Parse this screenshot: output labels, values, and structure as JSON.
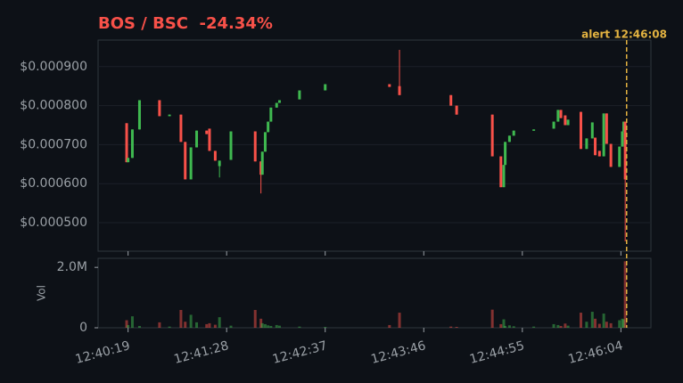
{
  "chart_data": {
    "type": "candlestick",
    "title": "BOS / BSC  -24.34%",
    "title_color": "#f85149",
    "up_color": "#3fb950",
    "down_color": "#f85149",
    "x": [
      "12:40:18",
      "12:40:19",
      "12:40:22",
      "12:40:27",
      "12:40:41",
      "12:40:48",
      "12:40:56",
      "12:40:59",
      "12:41:03",
      "12:41:07",
      "12:41:14",
      "12:41:16",
      "12:41:20",
      "12:41:23",
      "12:41:31",
      "12:41:48",
      "12:41:52",
      "12:41:53",
      "12:41:55",
      "12:41:57",
      "12:41:59",
      "12:42:03",
      "12:42:05",
      "12:42:19",
      "12:42:37",
      "12:43:22",
      "12:43:29",
      "12:44:05",
      "12:44:09",
      "12:44:34",
      "12:44:40",
      "12:44:42",
      "12:44:43",
      "12:44:46",
      "12:44:49",
      "12:45:03",
      "12:45:17",
      "12:45:20",
      "12:45:22",
      "12:45:25",
      "12:45:27",
      "12:45:36",
      "12:45:40",
      "12:45:44",
      "12:45:46",
      "12:45:49",
      "12:45:52",
      "12:45:54",
      "12:45:57",
      "12:46:03",
      "12:46:05",
      "12:46:06",
      "12:46:07"
    ],
    "open": [
      0.000755,
      0.000655,
      0.000666,
      0.000739,
      0.000814,
      0.000773,
      0.000777,
      0.000707,
      0.000611,
      0.000693,
      0.000736,
      0.000741,
      0.000684,
      0.000645,
      0.000661,
      0.000734,
      0.000657,
      0.000623,
      0.000682,
      0.000732,
      0.000759,
      0.000795,
      0.000807,
      0.000816,
      0.000839,
      0.000855,
      0.00085,
      0.000827,
      0.0008,
      0.000777,
      0.00067,
      0.000591,
      0.000648,
      0.000707,
      0.000723,
      0.000736,
      0.000741,
      0.000759,
      0.000789,
      0.000775,
      0.00075,
      0.000784,
      0.000689,
      0.000716,
      0.000718,
      0.000684,
      0.00067,
      0.00078,
      0.000702,
      0.000643,
      0.000695,
      0.000734,
      0.000759
    ],
    "close": [
      0.000655,
      0.000666,
      0.000739,
      0.000814,
      0.000773,
      0.000777,
      0.000707,
      0.000611,
      0.000693,
      0.000736,
      0.000727,
      0.000684,
      0.000659,
      0.000659,
      0.000734,
      0.000657,
      0.000623,
      0.000682,
      0.000732,
      0.000759,
      0.000795,
      0.000807,
      0.000814,
      0.000839,
      0.000855,
      0.000848,
      0.000827,
      0.0008,
      0.000777,
      0.00067,
      0.000591,
      0.000648,
      0.000707,
      0.000723,
      0.000736,
      0.000739,
      0.000759,
      0.000789,
      0.000768,
      0.00075,
      0.000764,
      0.000689,
      0.000716,
      0.000757,
      0.000673,
      0.00067,
      0.00078,
      0.000702,
      0.000643,
      0.000695,
      0.000734,
      0.000759,
      0.000611
    ],
    "high": [
      0.000755,
      0.000666,
      0.000739,
      0.000814,
      0.000814,
      0.000777,
      0.000777,
      0.000707,
      0.000693,
      0.000736,
      0.000736,
      0.000741,
      0.000684,
      0.000659,
      0.000734,
      0.000734,
      0.000657,
      0.000682,
      0.000732,
      0.000759,
      0.000795,
      0.000807,
      0.000814,
      0.000839,
      0.000855,
      0.000855,
      0.000943,
      0.000827,
      0.0008,
      0.000777,
      0.00067,
      0.000648,
      0.000707,
      0.000723,
      0.000736,
      0.000739,
      0.000759,
      0.000789,
      0.000789,
      0.000775,
      0.000764,
      0.000784,
      0.000716,
      0.000757,
      0.000718,
      0.000684,
      0.00078,
      0.00078,
      0.000702,
      0.000695,
      0.000734,
      0.000759,
      0.000759
    ],
    "low": [
      0.000655,
      0.000655,
      0.000666,
      0.000739,
      0.000773,
      0.000773,
      0.000707,
      0.000611,
      0.000611,
      0.000693,
      0.000727,
      0.000684,
      0.000659,
      0.000616,
      0.000661,
      0.000657,
      0.000575,
      0.000623,
      0.000682,
      0.000732,
      0.000759,
      0.000795,
      0.000807,
      0.000816,
      0.000839,
      0.000848,
      0.000827,
      0.0008,
      0.000777,
      0.00067,
      0.000591,
      0.000591,
      0.000648,
      0.000707,
      0.000723,
      0.000736,
      0.000741,
      0.000759,
      0.000768,
      0.00075,
      0.00075,
      0.000689,
      0.000689,
      0.000716,
      0.000673,
      0.00067,
      0.00067,
      0.000702,
      0.000643,
      0.000643,
      0.000695,
      0.000734,
      0.000452
    ],
    "volume": [
      250000,
      90000,
      380000,
      60000,
      180000,
      40000,
      590000,
      200000,
      430000,
      180000,
      120000,
      150000,
      100000,
      350000,
      70000,
      590000,
      300000,
      150000,
      120000,
      80000,
      60000,
      90000,
      70000,
      40000,
      30000,
      90000,
      500000,
      40000,
      30000,
      600000,
      120000,
      280000,
      60000,
      80000,
      50000,
      40000,
      120000,
      90000,
      60000,
      140000,
      70000,
      500000,
      200000,
      530000,
      300000,
      130000,
      470000,
      200000,
      150000,
      250000,
      300000,
      280000,
      2200000
    ],
    "xlim": [
      "12:39:58",
      "12:46:25"
    ],
    "xticks": [
      "12:40:19",
      "12:41:28",
      "12:42:37",
      "12:43:46",
      "12:44:55",
      "12:46:04"
    ],
    "ylim": [
      0.000427,
      0.000968
    ],
    "yticks": [
      {
        "value": 0.0005,
        "label": "$0.000500"
      },
      {
        "value": 0.0006,
        "label": "$0.000600"
      },
      {
        "value": 0.0007,
        "label": "$0.000700"
      },
      {
        "value": 0.0008,
        "label": "$0.000800"
      },
      {
        "value": 0.0009,
        "label": "$0.000900"
      }
    ],
    "volume_label": "Vol",
    "volume_ylim": [
      0,
      2300000
    ],
    "volume_yticks": [
      0,
      {
        "value": 2000000,
        "label": "2.0M"
      }
    ],
    "grid": true,
    "annotation": {
      "x": "12:46:08",
      "text": "alert 12:46:08",
      "color": "#e3b341"
    }
  }
}
